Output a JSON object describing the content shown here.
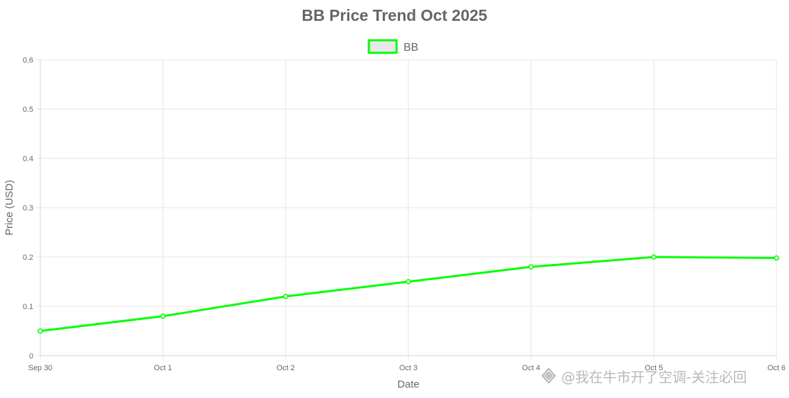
{
  "chart_data": {
    "type": "line",
    "title": "BB Price Trend Oct 2025",
    "xlabel": "Date",
    "ylabel": "Price (USD)",
    "categories": [
      "Sep 30",
      "Oct 1",
      "Oct 2",
      "Oct 3",
      "Oct 4",
      "Oct 5",
      "Oct 6"
    ],
    "series": [
      {
        "name": "BB",
        "values": [
          0.05,
          0.08,
          0.12,
          0.15,
          0.18,
          0.2,
          0.198
        ],
        "color": "#00ff00"
      }
    ],
    "ylim": [
      0,
      0.6
    ],
    "yticks": [
      0,
      0.1,
      0.2,
      0.3,
      0.4,
      0.5,
      0.6
    ],
    "ytick_labels": [
      "0",
      "0.1",
      "0.2",
      "0.3",
      "0.4",
      "0.5",
      "0.6"
    ],
    "grid": true,
    "legend_position": "top-center",
    "legend_fill": "#e8e8e8"
  },
  "watermark": {
    "text": "@我在牛市开了空调-关注必回",
    "icon": "watermark-logo-icon"
  }
}
